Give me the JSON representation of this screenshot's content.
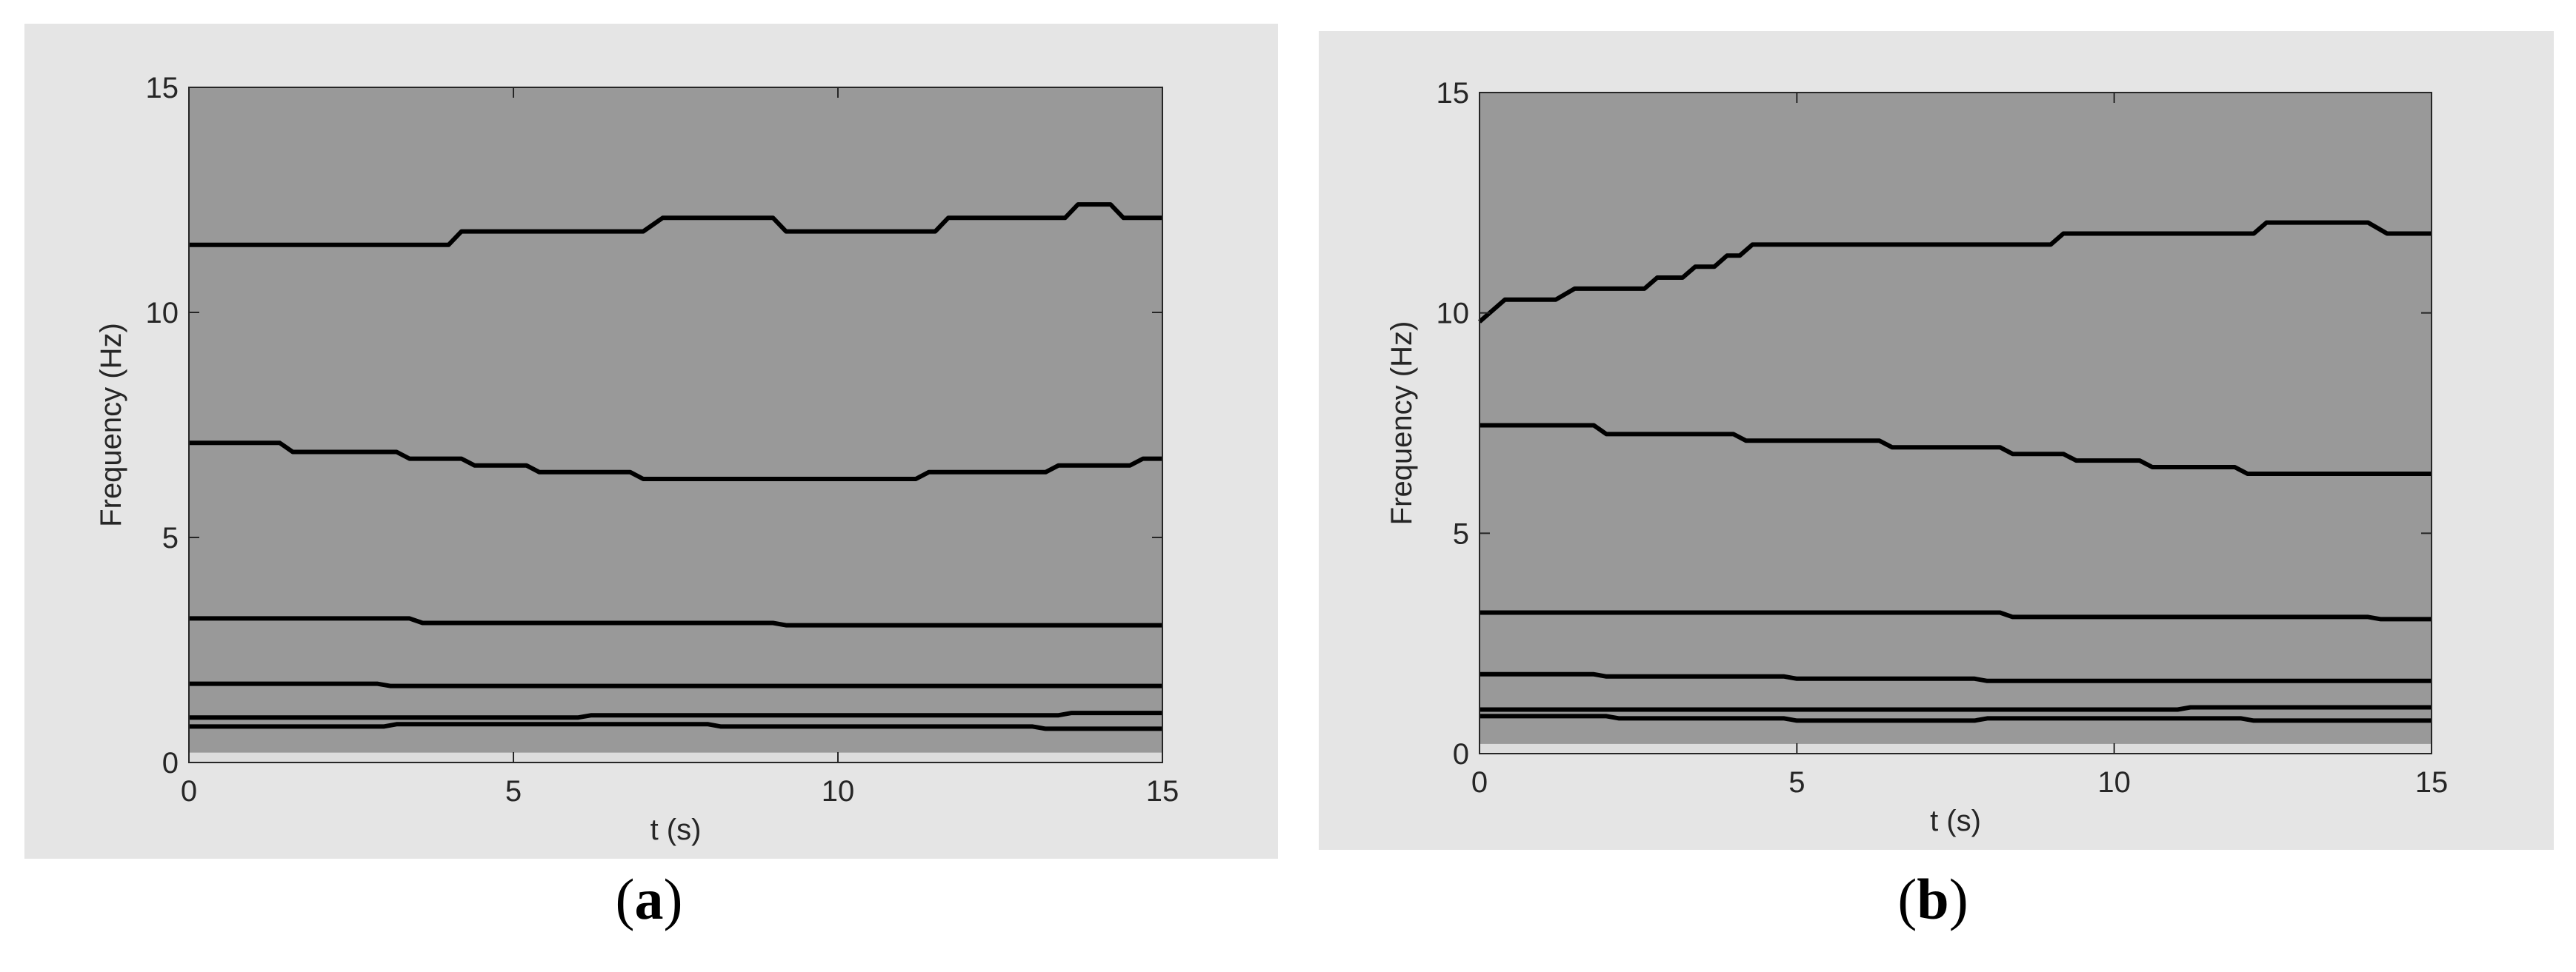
{
  "colors": {
    "figure_background": "#e5e5e5",
    "plot_background": "#999999",
    "plot_bottom_band": "#dddddd",
    "ridge_line": "#000000",
    "axis_line": "#262626"
  },
  "chart_data": [
    {
      "type": "line",
      "label": "a",
      "xlabel": "t (s)",
      "ylabel": "Frequency (Hz)",
      "xlim": [
        0,
        15
      ],
      "ylim": [
        0,
        15
      ],
      "xticks": [
        "0",
        "5",
        "10",
        "15"
      ],
      "yticks": [
        "0",
        "5",
        "10",
        "15"
      ],
      "grid": false,
      "legend": "none",
      "series": [
        {
          "x": [
            0,
            2,
            4,
            4.2,
            5,
            7,
            7.3,
            9,
            9.2,
            11.5,
            11.7,
            13.5,
            13.7,
            14.2,
            14.4,
            15
          ],
          "y": [
            11.5,
            11.5,
            11.5,
            11.8,
            11.8,
            11.8,
            12.1,
            12.1,
            11.8,
            11.8,
            12.1,
            12.1,
            12.4,
            12.4,
            12.1,
            12.1
          ]
        },
        {
          "x": [
            0,
            1.4,
            1.6,
            3.2,
            3.4,
            4.2,
            4.4,
            5.2,
            5.4,
            6.8,
            7.0,
            11.2,
            11.4,
            13.2,
            13.4,
            14.5,
            14.7,
            15
          ],
          "y": [
            7.1,
            7.1,
            6.9,
            6.9,
            6.75,
            6.75,
            6.6,
            6.6,
            6.45,
            6.45,
            6.3,
            6.3,
            6.45,
            6.45,
            6.6,
            6.6,
            6.75,
            6.75
          ]
        },
        {
          "x": [
            0,
            3.4,
            3.6,
            9.0,
            9.2,
            15
          ],
          "y": [
            3.2,
            3.2,
            3.1,
            3.1,
            3.05,
            3.05
          ]
        },
        {
          "x": [
            0,
            2.9,
            3.1,
            15
          ],
          "y": [
            1.75,
            1.75,
            1.7,
            1.7
          ]
        },
        {
          "x": [
            0,
            6.0,
            6.2,
            13.4,
            13.6,
            15
          ],
          "y": [
            1.0,
            1.0,
            1.05,
            1.05,
            1.1,
            1.1
          ]
        },
        {
          "x": [
            0,
            3.0,
            3.2,
            8.0,
            8.2,
            13.0,
            13.2,
            15
          ],
          "y": [
            0.8,
            0.8,
            0.85,
            0.85,
            0.8,
            0.8,
            0.75,
            0.75
          ]
        }
      ]
    },
    {
      "type": "line",
      "label": "b",
      "xlabel": "t (s)",
      "ylabel": "Frequency (Hz)",
      "xlim": [
        0,
        15
      ],
      "ylim": [
        0,
        15
      ],
      "xticks": [
        "0",
        "5",
        "10",
        "15"
      ],
      "yticks": [
        "0",
        "5",
        "10",
        "15"
      ],
      "grid": false,
      "legend": "none",
      "series": [
        {
          "x": [
            0,
            0.4,
            1.2,
            1.5,
            2.6,
            2.8,
            3.2,
            3.4,
            3.7,
            3.9,
            4.1,
            4.3,
            9.0,
            9.2,
            12.2,
            12.4,
            14.0,
            14.3,
            15
          ],
          "y": [
            9.8,
            10.3,
            10.3,
            10.55,
            10.55,
            10.8,
            10.8,
            11.05,
            11.05,
            11.3,
            11.3,
            11.55,
            11.55,
            11.8,
            11.8,
            12.05,
            12.05,
            11.8,
            11.8
          ]
        },
        {
          "x": [
            0,
            1.8,
            2.0,
            4.0,
            4.2,
            6.3,
            6.5,
            8.2,
            8.4,
            9.2,
            9.4,
            10.4,
            10.6,
            11.9,
            12.1,
            15
          ],
          "y": [
            7.45,
            7.45,
            7.25,
            7.25,
            7.1,
            7.1,
            6.95,
            6.95,
            6.8,
            6.8,
            6.65,
            6.65,
            6.5,
            6.5,
            6.35,
            6.35
          ]
        },
        {
          "x": [
            0,
            8.2,
            8.4,
            14.0,
            14.2,
            15
          ],
          "y": [
            3.2,
            3.2,
            3.1,
            3.1,
            3.05,
            3.05
          ]
        },
        {
          "x": [
            0,
            1.8,
            2.0,
            4.8,
            5.0,
            7.8,
            8.0,
            15
          ],
          "y": [
            1.8,
            1.8,
            1.75,
            1.75,
            1.7,
            1.7,
            1.65,
            1.65
          ]
        },
        {
          "x": [
            0,
            11.0,
            11.2,
            15
          ],
          "y": [
            1.0,
            1.0,
            1.05,
            1.05
          ]
        },
        {
          "x": [
            0,
            2.0,
            2.2,
            4.8,
            5.0,
            7.8,
            8.0,
            12.0,
            12.2,
            15
          ],
          "y": [
            0.85,
            0.85,
            0.8,
            0.8,
            0.75,
            0.75,
            0.8,
            0.8,
            0.75,
            0.75
          ]
        }
      ]
    }
  ]
}
